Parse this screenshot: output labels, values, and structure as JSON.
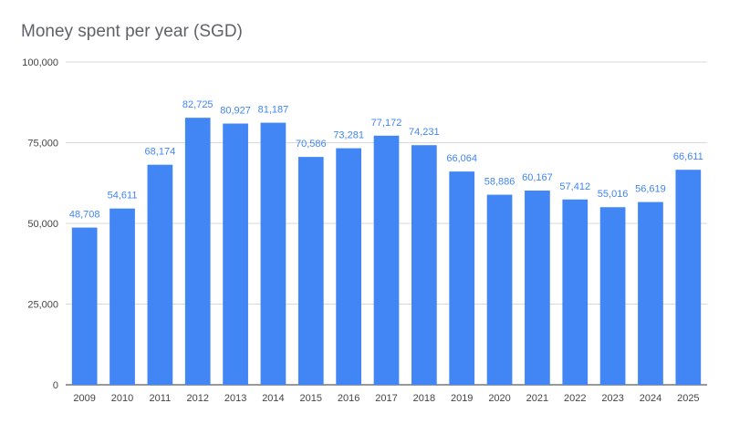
{
  "chart_data": {
    "type": "bar",
    "title": "Money spent per year (SGD)",
    "categories": [
      "2009",
      "2010",
      "2011",
      "2012",
      "2013",
      "2014",
      "2015",
      "2016",
      "2017",
      "2018",
      "2019",
      "2020",
      "2021",
      "2022",
      "2023",
      "2024",
      "2025"
    ],
    "values": [
      48708,
      54611,
      68174,
      82725,
      80927,
      81187,
      70586,
      73281,
      77172,
      74231,
      66064,
      58886,
      60167,
      57412,
      55016,
      56619,
      66611
    ],
    "data_labels": [
      "48,708",
      "54,611",
      "68,174",
      "82,725",
      "80,927",
      "81,187",
      "70,586",
      "73,281",
      "77,172",
      "74,231",
      "66,064",
      "58,886",
      "60,167",
      "57,412",
      "55,016",
      "56,619",
      "66,611"
    ],
    "y_ticks": [
      0,
      25000,
      50000,
      75000,
      100000
    ],
    "y_tick_labels": [
      "0",
      "25,000",
      "50,000",
      "75,000",
      "100,000"
    ],
    "ylim": [
      0,
      100000
    ],
    "grid": true,
    "legend": "none",
    "bar_color": "#4285f4",
    "label_color": "#4285f4",
    "grid_color": "#d9d9d9",
    "title_color": "#5f6368"
  }
}
